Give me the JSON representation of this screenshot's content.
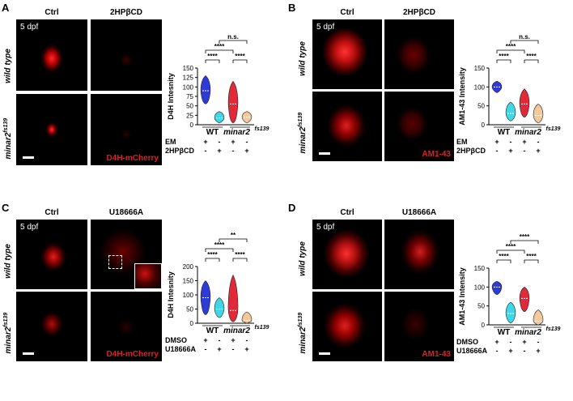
{
  "panels": [
    {
      "id": "A",
      "label": "A",
      "col1": "Ctrl",
      "col2": "2HPβCD",
      "row1": "wild type",
      "row2_main": "minar2",
      "row2_sup": "fs139",
      "dpf": "5 dpf",
      "stain": "D4H-mCherry",
      "chart_data": {
        "type": "violin",
        "ylabel": "D4H Intesnity",
        "ylim": [
          0,
          150
        ],
        "yticks": [
          "0",
          "25",
          "50",
          "75",
          "100",
          "125",
          "150"
        ],
        "groups": [
          "WT",
          "minar2fs139"
        ],
        "group_labels": [
          "WT",
          "minar2"
        ],
        "group_sup": [
          "",
          "fs139"
        ],
        "treat_names": [
          "EM",
          "2HPβCD"
        ],
        "treat_signs": [
          [
            "+",
            "-",
            "+",
            "-"
          ],
          [
            "-",
            "+",
            "-",
            "+"
          ]
        ],
        "medians": [
          90,
          18,
          55,
          20
        ],
        "spreads": [
          [
            55,
            130
          ],
          [
            5,
            35
          ],
          [
            5,
            115
          ],
          [
            5,
            35
          ]
        ],
        "colors": [
          "#2f3bd6",
          "#3fd6e8",
          "#e02a3a",
          "#f5c89a"
        ],
        "sig_brackets": [
          {
            "a": 0,
            "b": 1,
            "text": "****"
          },
          {
            "a": 2,
            "b": 3,
            "text": "****"
          },
          {
            "a": 0,
            "b": 2,
            "text": "****"
          },
          {
            "a": 1,
            "b": 3,
            "text": "n.s."
          }
        ]
      }
    },
    {
      "id": "B",
      "label": "B",
      "col1": "Ctrl",
      "col2": "2HPβCD",
      "row1": "wild type",
      "row2_main": "minar2",
      "row2_sup": "fs139",
      "dpf": "5 dpf",
      "stain": "AM1-43",
      "chart_data": {
        "type": "violin",
        "ylabel": "AM1-43 Intensity",
        "ylim": [
          0,
          150
        ],
        "yticks": [
          "0",
          "50",
          "100",
          "150"
        ],
        "groups": [
          "WT",
          "minar2fs139"
        ],
        "group_labels": [
          "WT",
          "minar2"
        ],
        "group_sup": [
          "",
          "fs139"
        ],
        "treat_names": [
          "EM",
          "2HPβCD"
        ],
        "treat_signs": [
          [
            "+",
            "-",
            "+",
            "-"
          ],
          [
            "-",
            "+",
            "-",
            "+"
          ]
        ],
        "medians": [
          100,
          30,
          55,
          25
        ],
        "spreads": [
          [
            85,
            115
          ],
          [
            10,
            60
          ],
          [
            20,
            95
          ],
          [
            5,
            55
          ]
        ],
        "colors": [
          "#2f3bd6",
          "#3fd6e8",
          "#e02a3a",
          "#f5c89a"
        ],
        "sig_brackets": [
          {
            "a": 0,
            "b": 1,
            "text": "****"
          },
          {
            "a": 2,
            "b": 3,
            "text": "****"
          },
          {
            "a": 0,
            "b": 2,
            "text": "****"
          },
          {
            "a": 1,
            "b": 3,
            "text": "n.s."
          }
        ]
      }
    },
    {
      "id": "C",
      "label": "C",
      "col1": "Ctrl",
      "col2": "U18666A",
      "row1": "wild type",
      "row2_main": "minar2",
      "row2_sup": "fs139",
      "dpf": "5 dpf",
      "stain": "D4H-mCherry",
      "chart_data": {
        "type": "violin",
        "ylabel": "D4H Intesnity",
        "ylim": [
          0,
          200
        ],
        "yticks": [
          "0",
          "50",
          "100",
          "150",
          "200"
        ],
        "groups": [
          "WT",
          "minar2fs139"
        ],
        "group_labels": [
          "WT",
          "minar2"
        ],
        "group_sup": [
          "",
          "fs139"
        ],
        "treat_names": [
          "DMSO",
          "U18666A"
        ],
        "treat_signs": [
          [
            "+",
            "-",
            "+",
            "-"
          ],
          [
            "-",
            "+",
            "-",
            "+"
          ]
        ],
        "medians": [
          90,
          50,
          45,
          10
        ],
        "spreads": [
          [
            30,
            150
          ],
          [
            20,
            90
          ],
          [
            5,
            170
          ],
          [
            0,
            40
          ]
        ],
        "colors": [
          "#2f3bd6",
          "#3fd6e8",
          "#e02a3a",
          "#f5c89a"
        ],
        "sig_brackets": [
          {
            "a": 0,
            "b": 1,
            "text": "****"
          },
          {
            "a": 2,
            "b": 3,
            "text": "****"
          },
          {
            "a": 0,
            "b": 2,
            "text": "****"
          },
          {
            "a": 1,
            "b": 3,
            "text": "**"
          }
        ]
      }
    },
    {
      "id": "D",
      "label": "D",
      "col1": "Ctrl",
      "col2": "U18666A",
      "row1": "wild type",
      "row2_main": "minar2",
      "row2_sup": "fs139",
      "dpf": "5 dpf",
      "stain": "AM1-43",
      "chart_data": {
        "type": "violin",
        "ylabel": "AM1-43 Intensity",
        "ylim": [
          0,
          150
        ],
        "yticks": [
          "0",
          "50",
          "100",
          "150"
        ],
        "groups": [
          "WT",
          "minar2fs139"
        ],
        "group_labels": [
          "WT",
          "minar2"
        ],
        "group_sup": [
          "",
          "fs139"
        ],
        "treat_names": [
          "DMSO",
          "U18666A"
        ],
        "treat_signs": [
          [
            "+",
            "-",
            "+",
            "-"
          ],
          [
            "-",
            "+",
            "-",
            "+"
          ]
        ],
        "medians": [
          100,
          30,
          70,
          10
        ],
        "spreads": [
          [
            80,
            115
          ],
          [
            5,
            60
          ],
          [
            35,
            100
          ],
          [
            0,
            40
          ]
        ],
        "colors": [
          "#2f3bd6",
          "#3fd6e8",
          "#e02a3a",
          "#f5c89a"
        ],
        "sig_brackets": [
          {
            "a": 0,
            "b": 1,
            "text": "****"
          },
          {
            "a": 2,
            "b": 3,
            "text": "****"
          },
          {
            "a": 0,
            "b": 2,
            "text": "****"
          },
          {
            "a": 1,
            "b": 3,
            "text": "****"
          }
        ]
      }
    }
  ]
}
